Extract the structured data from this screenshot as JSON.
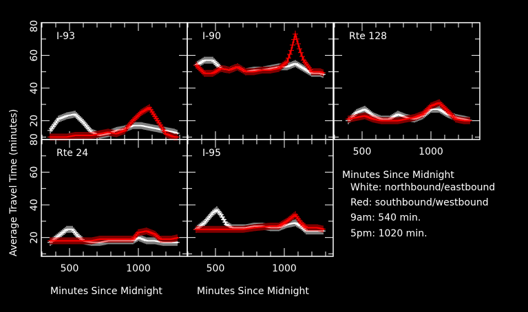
{
  "chart_data": [
    {
      "type": "line",
      "title": "I-93",
      "xlim": [
        295,
        1355
      ],
      "ylim": [
        8.5,
        80
      ],
      "series": [
        {
          "name": "northbound",
          "color": "#ffffff",
          "x": [
            360,
            420,
            480,
            540,
            600,
            660,
            720,
            780,
            840,
            900,
            960,
            1020,
            1080,
            1140,
            1200,
            1260,
            1290
          ],
          "y": [
            14,
            21,
            23,
            24,
            19,
            13,
            11,
            12,
            14,
            15,
            17,
            17,
            16,
            15,
            14,
            13,
            12
          ]
        },
        {
          "name": "southbound",
          "color": "#ff0000",
          "x": [
            360,
            420,
            480,
            540,
            600,
            660,
            720,
            780,
            840,
            900,
            960,
            1020,
            1080,
            1140,
            1200,
            1260,
            1290
          ],
          "y": [
            10,
            10,
            10,
            11,
            11,
            11,
            12,
            13,
            12,
            14,
            20,
            25,
            28,
            20,
            12,
            10,
            10
          ]
        }
      ]
    },
    {
      "type": "line",
      "title": "I-90",
      "xlim": [
        295,
        1355
      ],
      "ylim": [
        8.5,
        80
      ],
      "series": [
        {
          "name": "eastbound",
          "color": "#ffffff",
          "x": [
            360,
            420,
            480,
            540,
            600,
            660,
            720,
            780,
            840,
            900,
            960,
            1020,
            1080,
            1140,
            1200,
            1260,
            1290
          ],
          "y": [
            54,
            57,
            57,
            52,
            51,
            53,
            50,
            51,
            51,
            52,
            53,
            53,
            55,
            52,
            49,
            49,
            48
          ]
        },
        {
          "name": "westbound",
          "color": "#ff0000",
          "x": [
            360,
            420,
            480,
            540,
            600,
            660,
            720,
            780,
            840,
            900,
            960,
            1020,
            1050,
            1080,
            1110,
            1140,
            1200,
            1260,
            1290
          ],
          "y": [
            54,
            49,
            49,
            52,
            51,
            53,
            50,
            50,
            51,
            51,
            52,
            56,
            63,
            73,
            64,
            57,
            50,
            50,
            49
          ]
        }
      ]
    },
    {
      "type": "line",
      "title": "Rte 128",
      "xlim": [
        295,
        1355
      ],
      "ylim": [
        8.5,
        80
      ],
      "series": [
        {
          "name": "northbound",
          "color": "#ffffff",
          "x": [
            400,
            460,
            520,
            580,
            640,
            700,
            760,
            820,
            880,
            940,
            1000,
            1060,
            1120,
            1180,
            1240,
            1290
          ],
          "y": [
            20,
            25,
            27,
            23,
            21,
            21,
            24,
            22,
            21,
            23,
            27,
            27,
            24,
            22,
            21,
            20
          ]
        },
        {
          "name": "southbound",
          "color": "#ff0000",
          "x": [
            400,
            460,
            520,
            580,
            640,
            700,
            760,
            820,
            880,
            940,
            1000,
            1060,
            1120,
            1180,
            1240,
            1290
          ],
          "y": [
            21,
            22,
            23,
            21,
            20,
            20,
            20,
            21,
            22,
            24,
            29,
            31,
            26,
            21,
            20,
            20
          ]
        }
      ]
    },
    {
      "type": "line",
      "title": "Rte 24",
      "xlim": [
        295,
        1355
      ],
      "ylim": [
        8.5,
        80
      ],
      "series": [
        {
          "name": "northbound",
          "color": "#ffffff",
          "x": [
            360,
            420,
            480,
            520,
            560,
            600,
            660,
            720,
            780,
            840,
            900,
            960,
            1000,
            1060,
            1120,
            1180,
            1240,
            1290
          ],
          "y": [
            17,
            21,
            25,
            25,
            21,
            18,
            17,
            17,
            18,
            18,
            18,
            18,
            20,
            18,
            18,
            17,
            17,
            17
          ]
        },
        {
          "name": "southbound",
          "color": "#ff0000",
          "x": [
            360,
            420,
            480,
            540,
            600,
            660,
            720,
            780,
            840,
            900,
            960,
            1000,
            1060,
            1120,
            1160,
            1240,
            1290
          ],
          "y": [
            18,
            18,
            18,
            18,
            18,
            18,
            19,
            19,
            19,
            19,
            19,
            23,
            24,
            22,
            19,
            19,
            20
          ]
        }
      ]
    },
    {
      "type": "line",
      "title": "I-95",
      "xlim": [
        295,
        1355
      ],
      "ylim": [
        8.5,
        80
      ],
      "series": [
        {
          "name": "northbound",
          "color": "#ffffff",
          "x": [
            360,
            420,
            480,
            510,
            540,
            580,
            620,
            720,
            780,
            840,
            900,
            960,
            1020,
            1080,
            1120,
            1160,
            1240,
            1290
          ],
          "y": [
            25,
            29,
            35,
            37,
            34,
            28,
            26,
            26,
            27,
            27,
            26,
            26,
            28,
            29,
            27,
            24,
            24,
            24
          ]
        },
        {
          "name": "southbound",
          "color": "#ff0000",
          "x": [
            360,
            480,
            600,
            700,
            780,
            900,
            960,
            1020,
            1080,
            1120,
            1160,
            1240,
            1290
          ],
          "y": [
            25,
            25,
            25,
            25,
            26,
            27,
            27,
            30,
            34,
            29,
            26,
            26,
            25
          ]
        }
      ]
    }
  ],
  "axes": {
    "ylabel": "Average Travel Time    (minutes)",
    "xlabel": "Minutes Since Midnight",
    "yticks": [
      "80",
      "60",
      "40",
      "20"
    ],
    "xticks": [
      "500",
      "1000"
    ]
  },
  "legend": {
    "title": "Minutes Since Midnight",
    "lines": [
      "White: northbound/eastbound",
      "Red: southbound/westbound",
      "9am: 540 min.",
      "5pm: 1020 min."
    ]
  }
}
